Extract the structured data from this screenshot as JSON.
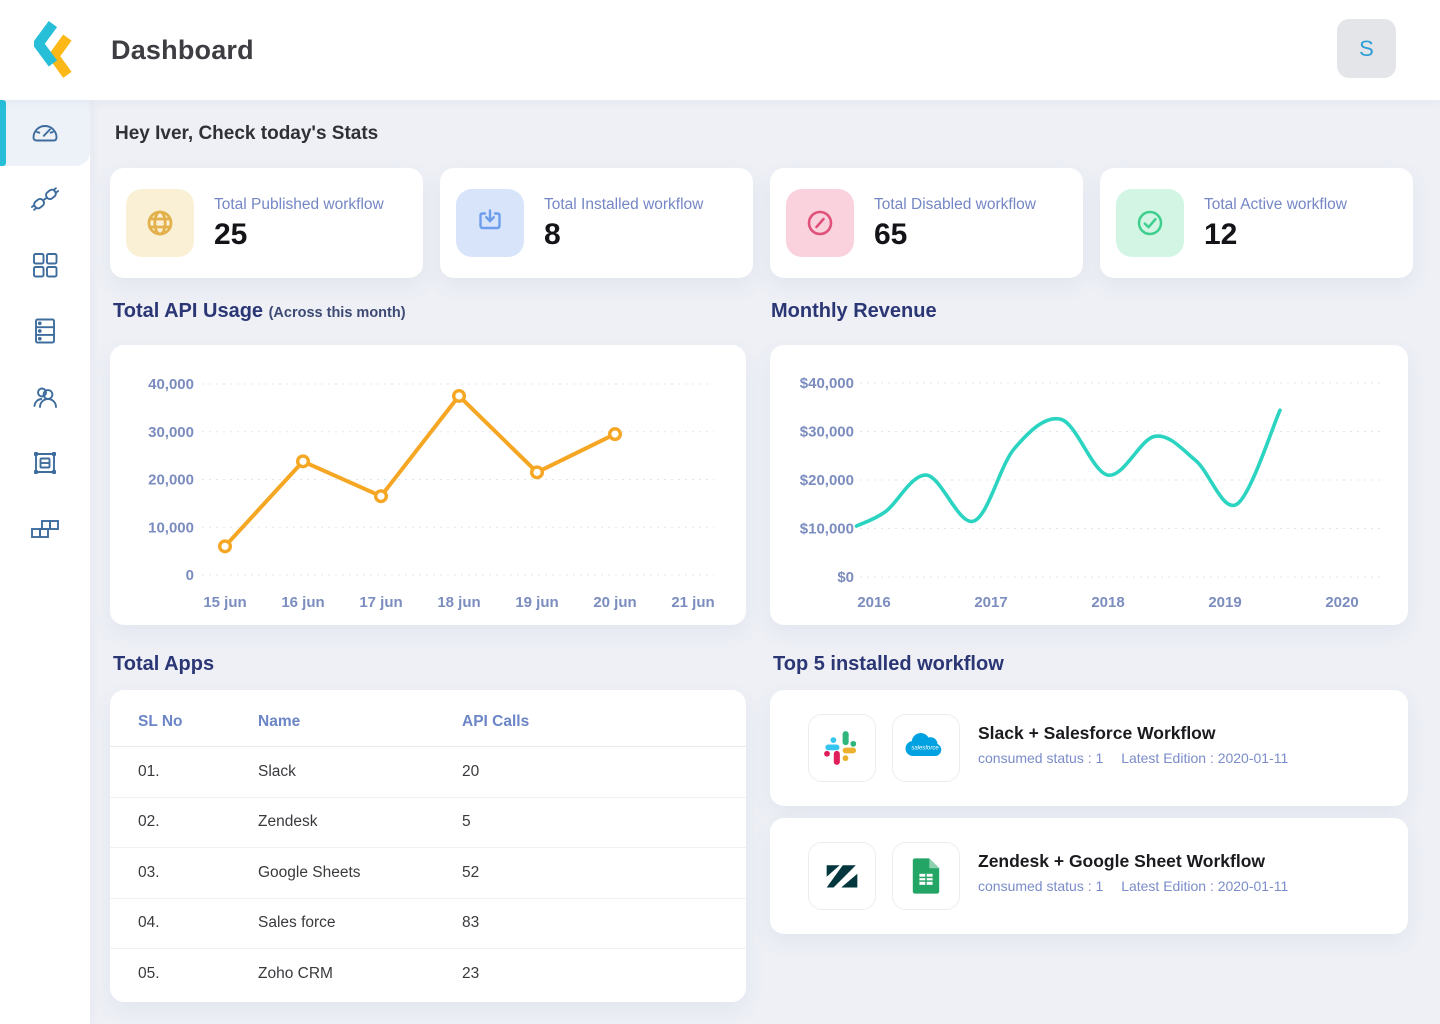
{
  "header": {
    "app_title": "Dashboard",
    "avatar_initial": "S"
  },
  "sidebar": {
    "items": [
      {
        "id": "dashboard",
        "icon": "speedometer-icon",
        "active": true
      },
      {
        "id": "connections",
        "icon": "plug-icon",
        "active": false
      },
      {
        "id": "apps",
        "icon": "grid-icon",
        "active": false
      },
      {
        "id": "storage",
        "icon": "server-icon",
        "active": false
      },
      {
        "id": "users",
        "icon": "users-icon",
        "active": false
      },
      {
        "id": "workflows",
        "icon": "package-icon",
        "active": false
      },
      {
        "id": "tables",
        "icon": "table-cells-icon",
        "active": false
      }
    ]
  },
  "greeting": "Hey Iver, Check today's Stats",
  "stats": [
    {
      "label": "Total Published workflow",
      "value": "25",
      "icon": "globe-icon",
      "icon_color": "#E2B14C",
      "icon_bg": "#FAF0D5"
    },
    {
      "label": "Total Installed workflow",
      "value": "8",
      "icon": "download-icon",
      "icon_color": "#6D9EEC",
      "icon_bg": "#D8E4FA"
    },
    {
      "label": "Total Disabled workflow",
      "value": "65",
      "icon": "disabled-icon",
      "icon_color": "#E0517A",
      "icon_bg": "#FAD2DD"
    },
    {
      "label": "Total Active workflow",
      "value": "12",
      "icon": "check-circle-icon",
      "icon_color": "#3ECF8E",
      "icon_bg": "#D2F5E4"
    }
  ],
  "sections": {
    "api_usage_title": "Total API Usage",
    "api_usage_subtitle": "(Across this month)",
    "monthly_revenue_title": "Monthly Revenue",
    "total_apps_title": "Total Apps",
    "top_workflows_title": "Top 5 installed workflow"
  },
  "chart_data": [
    {
      "id": "api_usage",
      "type": "line",
      "title": "Total API Usage (Across this month)",
      "x_categories": [
        "15 jun",
        "16 jun",
        "17 jun",
        "18 jun",
        "19 jun",
        "20 jun",
        "21 jun"
      ],
      "values": [
        6000,
        23800,
        16500,
        37500,
        21500,
        29500
      ],
      "values_note": "six points plotted on 15-20 jun, no point for 21 jun",
      "ylim": [
        0,
        40000
      ],
      "y_ticks": [
        {
          "value": 0,
          "label": "0"
        },
        {
          "value": 10000,
          "label": "10,000"
        },
        {
          "value": 20000,
          "label": "20,000"
        },
        {
          "value": 30000,
          "label": "30,000"
        },
        {
          "value": 40000,
          "label": "40,000"
        }
      ],
      "line_color": "#F5A623",
      "marker": "hollow-circle",
      "grid": "dashed-horizontal",
      "legend": "none"
    },
    {
      "id": "monthly_revenue",
      "type": "line",
      "smooth": true,
      "title": "Monthly Revenue",
      "x_ticks": [
        2016,
        2017,
        2018,
        2019,
        2020
      ],
      "points": [
        [
          2015.85,
          10500
        ],
        [
          2016.1,
          13500
        ],
        [
          2016.45,
          21000
        ],
        [
          2016.85,
          11500
        ],
        [
          2017.2,
          26500
        ],
        [
          2017.6,
          32500
        ],
        [
          2018.0,
          21000
        ],
        [
          2018.4,
          29000
        ],
        [
          2018.75,
          24000
        ],
        [
          2019.1,
          15000
        ],
        [
          2019.47,
          34400
        ]
      ],
      "ylim": [
        0,
        40000
      ],
      "y_ticks": [
        {
          "value": 0,
          "label": "$0"
        },
        {
          "value": 10000,
          "label": "$10,000"
        },
        {
          "value": 20000,
          "label": "$20,000"
        },
        {
          "value": 30000,
          "label": "$30,000"
        },
        {
          "value": 40000,
          "label": "$40,000"
        }
      ],
      "line_color": "#2BD4C0",
      "marker": "none",
      "grid": "dashed-horizontal",
      "legend": "none"
    }
  ],
  "apps_table": {
    "columns": [
      "SL No",
      "Name",
      "API Calls"
    ],
    "rows": [
      [
        "01.",
        "Slack",
        "20"
      ],
      [
        "02.",
        "Zendesk",
        "5"
      ],
      [
        "03.",
        "Google Sheets",
        "52"
      ],
      [
        "04.",
        "Sales force",
        "83"
      ],
      [
        "05.",
        "Zoho CRM",
        "23"
      ]
    ]
  },
  "workflows": [
    {
      "title": "Slack + Salesforce Workflow",
      "consumed": "consumed status : 1",
      "edition": "Latest Edition : 2020-01-11",
      "apps": [
        "slack",
        "salesforce"
      ]
    },
    {
      "title": "Zendesk + Google Sheet Workflow",
      "consumed": "consumed status : 1",
      "edition": "Latest Edition : 2020-01-11",
      "apps": [
        "zendesk",
        "google-sheets"
      ]
    }
  ],
  "colors": {
    "accent_teal": "#27BED8",
    "logo_yellow": "#FBB816",
    "api_line": "#F5A623",
    "revenue_line": "#2BD4C0",
    "sidebar_icon": "#3E6D9D",
    "title_navy": "#2B3674",
    "muted_blue": "#7B8CBF",
    "background": "#EEF0F6"
  }
}
